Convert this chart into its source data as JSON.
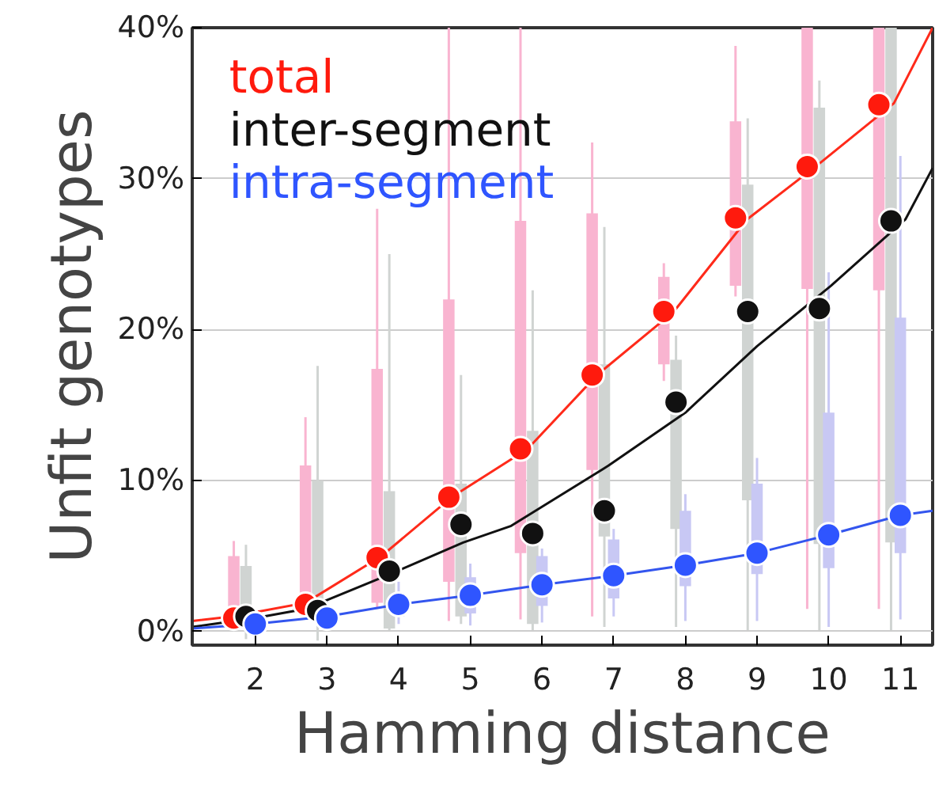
{
  "chart_data": {
    "type": "box",
    "xlabel": "Hamming distance",
    "ylabel": "Unfit genotypes",
    "xlim": [
      1.12,
      11.45
    ],
    "xticks": [
      2,
      3,
      4,
      5,
      6,
      7,
      8,
      9,
      10,
      11
    ],
    "ylim": [
      -0.9,
      40
    ],
    "yticks": [
      {
        "value": 0,
        "label": "0%"
      },
      {
        "value": 10,
        "label": "10%"
      },
      {
        "value": 20,
        "label": "20%"
      },
      {
        "value": 30,
        "label": "30%"
      },
      {
        "value": 40,
        "label": "40%"
      }
    ],
    "grid": "y",
    "legend": "top left",
    "series": [
      {
        "color": "#f9b4d0",
        "x": [
          1.7,
          2.7,
          3.7,
          4.7,
          5.7,
          6.7,
          7.7,
          8.7,
          9.7,
          10.7
        ],
        "boxes": [
          {
            "low": 0.3,
            "q1": 0.5,
            "q3": 5.0,
            "high": 6.0
          },
          {
            "low": 1.2,
            "q1": 1.5,
            "q3": 11.0,
            "high": 14.2
          },
          {
            "low": 1.5,
            "q1": 1.9,
            "q3": 17.4,
            "high": 28
          },
          {
            "low": 0.7,
            "q1": 3.3,
            "q3": 22.0,
            "high": 40
          },
          {
            "low": 0.8,
            "q1": 5.2,
            "q3": 27.2,
            "high": 40
          },
          {
            "low": 1.0,
            "q1": 10.7,
            "q3": 27.7,
            "high": 32.4
          },
          {
            "low": 16.6,
            "q1": 17.7,
            "q3": 23.5,
            "high": 24.4
          },
          {
            "low": 22.2,
            "q1": 22.9,
            "q3": 33.8,
            "high": 38.8
          },
          {
            "low": 1.5,
            "q1": 22.7,
            "q3": 40,
            "high": 40
          },
          {
            "low": 1.5,
            "q1": 22.6,
            "q3": 40,
            "high": 40
          }
        ]
      },
      {
        "color": "#d0d4d2",
        "x": [
          1.87,
          2.87,
          3.87,
          4.87,
          5.87,
          6.87,
          7.87,
          8.87,
          9.87,
          10.87
        ],
        "boxes": [
          {
            "low": -0.5,
            "q1": 0.5,
            "q3": 4.35,
            "high": 5.75
          },
          {
            "low": -0.6,
            "q1": 0.8,
            "q3": 10.0,
            "high": 17.6
          },
          {
            "low": 0.1,
            "q1": 0.2,
            "q3": 9.3,
            "high": 25
          },
          {
            "low": 0.5,
            "q1": 1.0,
            "q3": 9.8,
            "high": 17.0
          },
          {
            "low": 0.1,
            "q1": 0.5,
            "q3": 13.3,
            "high": 22.6
          },
          {
            "low": 0.3,
            "q1": 6.3,
            "q3": 17.7,
            "high": 26.8
          },
          {
            "low": 0.3,
            "q1": 6.8,
            "q3": 18.0,
            "high": 19.6
          },
          {
            "low": 0.1,
            "q1": 8.7,
            "q3": 29.6,
            "high": 34.0
          },
          {
            "low": 0.1,
            "q1": 5.8,
            "q3": 34.7,
            "high": 36.5
          },
          {
            "low": 0.1,
            "q1": 5.9,
            "q3": 40,
            "high": 40
          }
        ]
      },
      {
        "color": "#c8c8f4",
        "x": [
          2,
          3,
          4,
          5,
          6,
          7,
          8,
          9,
          10,
          11
        ],
        "boxes": [
          {
            "low": 0,
            "q1": 0.2,
            "q3": 0.8,
            "high": 1.2
          },
          {
            "low": 0.2,
            "q1": 0.5,
            "q3": 1.5,
            "high": 2.0
          },
          {
            "low": 0.5,
            "q1": 1.0,
            "q3": 2.4,
            "high": 3.3
          },
          {
            "low": 0.4,
            "q1": 1.2,
            "q3": 3.6,
            "high": 4.5
          },
          {
            "low": 0.6,
            "q1": 1.7,
            "q3": 5.0,
            "high": 5.5
          },
          {
            "low": 1.0,
            "q1": 2.2,
            "q3": 6.1,
            "high": 6.8
          },
          {
            "low": 0.7,
            "q1": 3.0,
            "q3": 8.0,
            "high": 9.1
          },
          {
            "low": 0.7,
            "q1": 3.8,
            "q3": 9.8,
            "high": 11.5
          },
          {
            "low": 0.3,
            "q1": 4.2,
            "q3": 14.5,
            "high": 23.8
          },
          {
            "low": 0.8,
            "q1": 5.2,
            "q3": 20.8,
            "high": 31.5
          }
        ]
      },
      {
        "type": "line",
        "color": "#ff2a1a",
        "x": [
          1.12,
          1.68,
          2.7,
          3.76,
          4.74,
          5.8,
          6.77,
          7.84,
          8.86,
          9.87,
          10.91,
          11.45
        ],
        "values": [
          0.7,
          1.0,
          1.9,
          5.0,
          8.9,
          12.1,
          17.0,
          21.2,
          27.3,
          31.0,
          35.0,
          40
        ]
      },
      {
        "type": "line",
        "color": "#111111",
        "x": [
          1.12,
          2,
          2.7,
          3.88,
          4.9,
          5.57,
          6.93,
          8.0,
          9.0,
          10.03,
          11.07,
          11.45
        ],
        "values": [
          0.3,
          0.9,
          1.5,
          3.8,
          5.9,
          7.0,
          11.0,
          14.5,
          18.9,
          22.9,
          27.3,
          30.7
        ]
      },
      {
        "type": "line",
        "color": "#3355ee",
        "x": [
          1.12,
          2,
          3,
          4,
          5,
          6,
          7,
          8,
          9,
          10,
          11,
          11.45
        ],
        "values": [
          0.2,
          0.5,
          1.0,
          1.8,
          2.4,
          3.1,
          3.7,
          4.4,
          5.2,
          6.4,
          7.7,
          8.0
        ]
      },
      {
        "type": "scatter",
        "marker": "circle",
        "name": "total",
        "color": "#ff1a0d",
        "x": [
          1.7,
          2.7,
          3.7,
          4.7,
          5.7,
          6.7,
          7.7,
          8.7,
          9.7,
          10.7
        ],
        "values": [
          0.9,
          1.8,
          4.9,
          8.9,
          12.1,
          17.0,
          21.2,
          27.4,
          30.8,
          34.9
        ]
      },
      {
        "type": "scatter",
        "marker": "circle",
        "name": "inter-segment",
        "color": "#111111",
        "x": [
          1.87,
          2.87,
          3.87,
          4.87,
          5.87,
          6.87,
          7.87,
          8.87,
          9.87,
          10.87
        ],
        "values": [
          1.0,
          1.4,
          4.0,
          7.1,
          6.5,
          8.0,
          15.2,
          21.2,
          21.4,
          27.2
        ]
      },
      {
        "type": "scatter",
        "marker": "circle",
        "name": "intra-segment",
        "color": "#2f55ff",
        "x": [
          2,
          3,
          4,
          5,
          6,
          7,
          8,
          9,
          10,
          11
        ],
        "values": [
          0.5,
          0.9,
          1.8,
          2.4,
          3.1,
          3.7,
          4.4,
          5.2,
          6.4,
          7.7
        ]
      }
    ]
  }
}
